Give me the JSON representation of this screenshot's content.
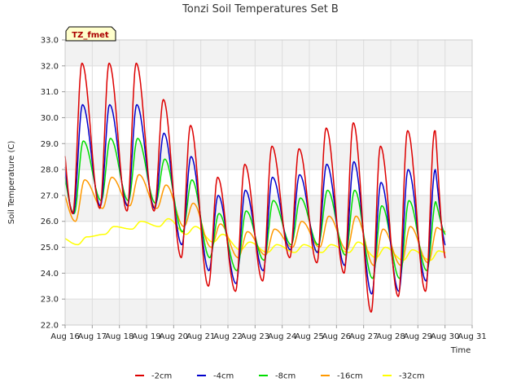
{
  "chart_data": {
    "type": "line",
    "title": "Tonzi Soil Temperatures Set B",
    "xlabel": "Time",
    "ylabel": "Soil Temperature (C)",
    "site_tag": "TZ_fmet",
    "ylim": [
      22.0,
      33.0
    ],
    "xlim": [
      16,
      31
    ],
    "y_ticks": [
      "22.0",
      "23.0",
      "24.0",
      "25.0",
      "26.0",
      "27.0",
      "28.0",
      "29.0",
      "30.0",
      "31.0",
      "32.0",
      "33.0"
    ],
    "x_ticks": [
      "Aug 16",
      "Aug 17",
      "Aug 18",
      "Aug 19",
      "Aug 20",
      "Aug 21",
      "Aug 22",
      "Aug 23",
      "Aug 24",
      "Aug 25",
      "Aug 26",
      "Aug 27",
      "Aug 28",
      "Aug 29",
      "Aug 30",
      "Aug 31"
    ],
    "grid": true,
    "legend_position": "bottom",
    "series": [
      {
        "name": "-2cm",
        "color": "#dd0000",
        "daily_min": [
          26.3,
          26.5,
          26.4,
          26.4,
          24.6,
          23.5,
          23.3,
          23.7,
          24.6,
          24.4,
          24.0,
          22.5,
          23.1,
          23.3
        ],
        "daily_max": [
          32.1,
          32.1,
          32.1,
          30.7,
          29.7,
          27.7,
          28.2,
          28.9,
          28.8,
          29.6,
          29.8,
          28.9,
          29.5,
          29.5
        ],
        "end_value": 24.6
      },
      {
        "name": "-4cm",
        "color": "#0000cc",
        "daily_min": [
          26.3,
          26.6,
          26.6,
          26.5,
          25.1,
          24.1,
          23.6,
          24.1,
          24.9,
          24.8,
          24.3,
          23.2,
          23.3,
          23.7
        ],
        "daily_max": [
          30.5,
          30.5,
          30.5,
          29.4,
          28.5,
          27.0,
          27.2,
          27.7,
          27.8,
          28.2,
          28.3,
          27.5,
          28.0,
          28.0
        ],
        "end_value": 25.1
      },
      {
        "name": "-8cm",
        "color": "#00dd00",
        "daily_min": [
          26.3,
          26.8,
          26.8,
          26.7,
          25.6,
          24.6,
          24.1,
          24.5,
          25.1,
          25.1,
          24.7,
          23.8,
          23.8,
          24.1
        ],
        "daily_max": [
          29.1,
          29.2,
          29.2,
          28.4,
          27.6,
          26.3,
          26.4,
          26.8,
          26.9,
          27.2,
          27.2,
          26.6,
          26.8,
          26.8
        ],
        "end_value": 25.5
      },
      {
        "name": "-16cm",
        "color": "#ff9900",
        "daily_min": [
          26.0,
          26.5,
          26.6,
          26.5,
          25.8,
          25.0,
          24.6,
          24.7,
          25.0,
          25.0,
          24.9,
          24.3,
          24.3,
          24.4
        ],
        "daily_max": [
          27.6,
          27.7,
          27.8,
          27.4,
          26.7,
          25.9,
          25.6,
          25.7,
          26.0,
          26.2,
          26.2,
          25.7,
          25.8,
          25.8
        ],
        "end_value": 25.6
      },
      {
        "name": "-32cm",
        "color": "#ffff00",
        "daily_min": [
          25.1,
          25.5,
          25.7,
          25.8,
          25.5,
          25.2,
          24.9,
          24.8,
          24.8,
          24.8,
          24.8,
          24.6,
          24.5,
          24.5
        ],
        "daily_max": [
          25.4,
          25.8,
          26.0,
          26.1,
          25.8,
          25.5,
          25.2,
          25.1,
          25.1,
          25.1,
          25.2,
          25.0,
          24.9,
          24.9
        ],
        "end_value": 24.8
      }
    ]
  }
}
